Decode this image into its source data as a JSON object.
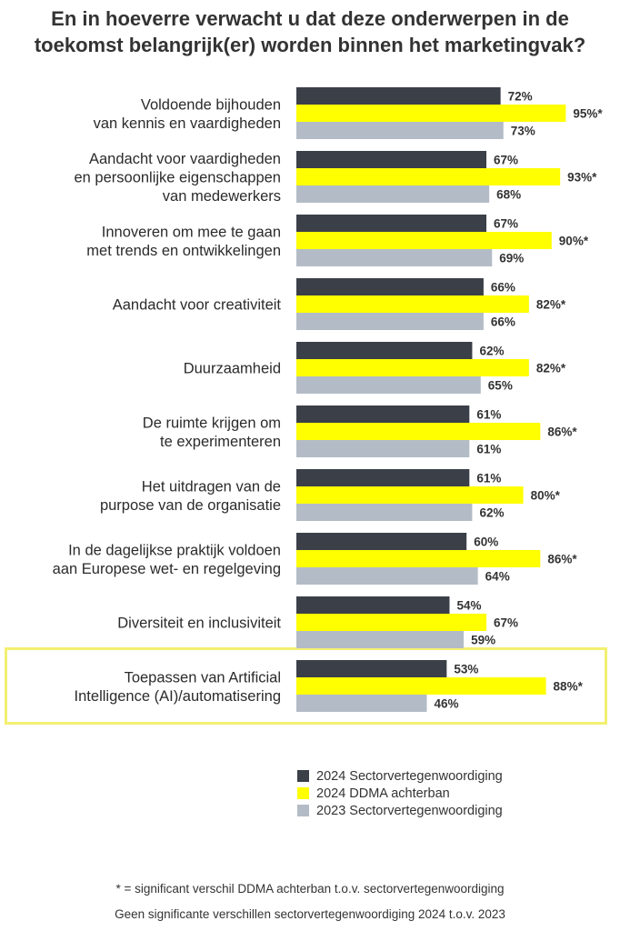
{
  "chart_data": {
    "type": "bar",
    "orientation": "horizontal",
    "title_lines": [
      "En in hoeverre verwacht u dat deze onderwerpen in de",
      "toekomst belangrijk(er) worden binnen het marketingvak?"
    ],
    "categories": [
      [
        "Voldoende bijhouden",
        "van kennis en vaardigheden"
      ],
      [
        "Aandacht voor vaardigheden",
        "en persoonlijke eigenschappen",
        "van medewerkers"
      ],
      [
        "Innoveren om mee te gaan",
        "met trends en ontwikkelingen"
      ],
      [
        "Aandacht voor creativiteit"
      ],
      [
        "Duurzaamheid"
      ],
      [
        "De ruimte krijgen om",
        "te experimenteren"
      ],
      [
        "Het uitdragen van de",
        "purpose van de organisatie"
      ],
      [
        "In de dagelijkse praktijk voldoen",
        "aan Europese wet- en regelgeving"
      ],
      [
        "Diversiteit en inclusiviteit"
      ],
      [
        "Toepassen van Artificial",
        "Intelligence (AI)/automatisering"
      ]
    ],
    "series": [
      {
        "name": "2024 Sectorvertegenwoordiging",
        "color": "#3b4048",
        "values": [
          72,
          67,
          67,
          66,
          62,
          61,
          61,
          60,
          54,
          53
        ],
        "labels": [
          "72%",
          "67%",
          "67%",
          "66%",
          "62%",
          "61%",
          "61%",
          "60%",
          "54%",
          "53%"
        ]
      },
      {
        "name": "2024 DDMA achterban",
        "color": "#ffff00",
        "values": [
          95,
          93,
          90,
          82,
          82,
          86,
          80,
          86,
          67,
          88
        ],
        "labels": [
          "95%*",
          "93%*",
          "90%*",
          "82%*",
          "82%*",
          "86%*",
          "80%*",
          "86%*",
          "67%",
          "88%*"
        ]
      },
      {
        "name": "2023 Sectorvertegenwoordiging",
        "color": "#b3bcc6",
        "values": [
          73,
          68,
          69,
          66,
          65,
          61,
          62,
          64,
          59,
          46
        ],
        "labels": [
          "73%",
          "68%",
          "69%",
          "66%",
          "65%",
          "61%",
          "62%",
          "64%",
          "59%",
          "46%"
        ]
      }
    ],
    "highlighted_category_index": 9,
    "highlight_color": "#f3f070",
    "xlim": [
      0,
      100
    ],
    "grid": false,
    "legend_position": "bottom-right",
    "footnotes": [
      "* = significant verschil DDMA achterban t.o.v. sectorvertegenwoordiging",
      "Geen significante verschillen sectorvertegenwoordiging 2024 t.o.v. 2023"
    ]
  }
}
